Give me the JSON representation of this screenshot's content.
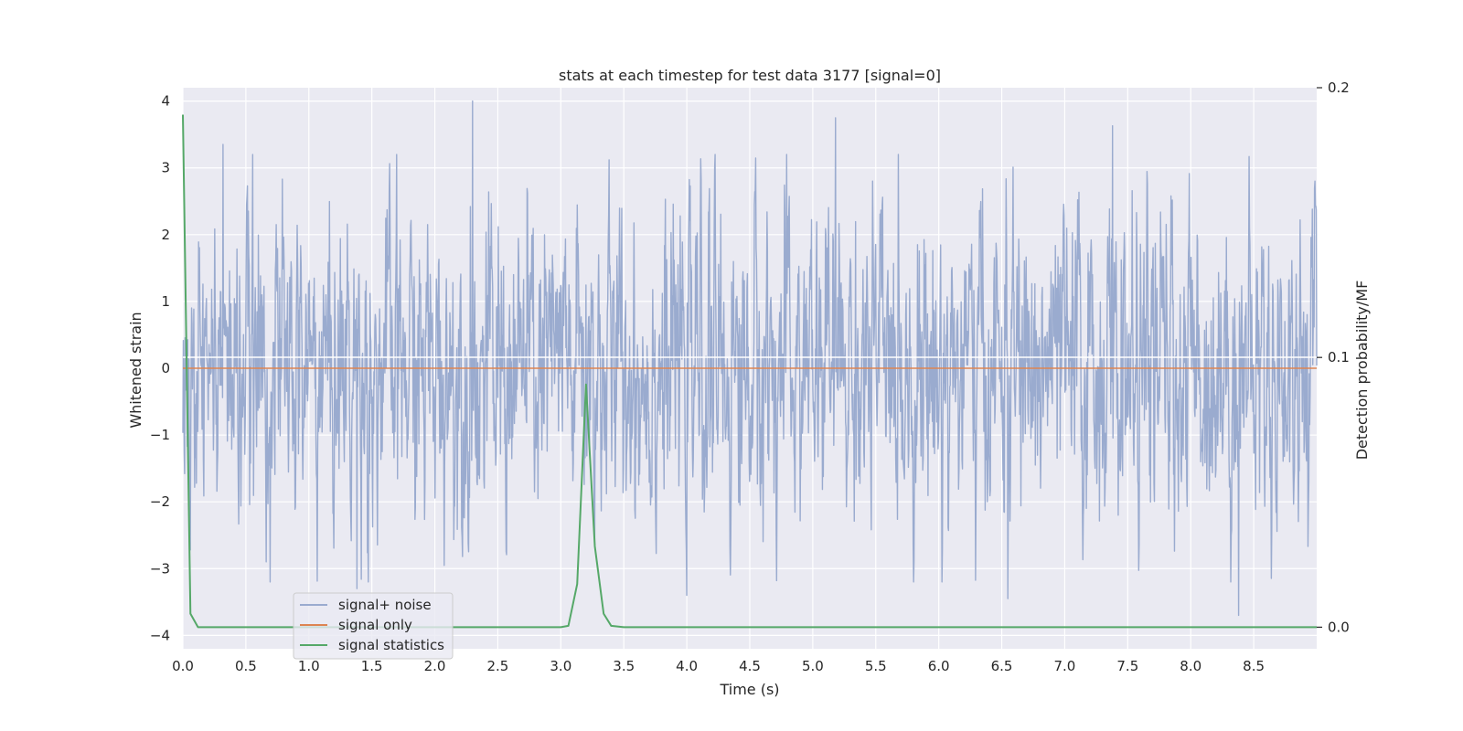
{
  "chart_data": {
    "type": "line",
    "title": "stats at each timestep for test data 3177 [signal=0]",
    "xlabel": "Time (s)",
    "ylabel": "Whitened strain",
    "y2label": "Detection probability/MF",
    "xlim": [
      0,
      9.0
    ],
    "ylim": [
      -4.2,
      4.2
    ],
    "y2lim": [
      -0.008,
      0.2
    ],
    "x_ticks": [
      "0.0",
      "0.5",
      "1.0",
      "1.5",
      "2.0",
      "2.5",
      "3.0",
      "3.5",
      "4.0",
      "4.5",
      "5.0",
      "5.5",
      "6.0",
      "6.5",
      "7.0",
      "7.5",
      "8.0",
      "8.5"
    ],
    "y_ticks": [
      "4",
      "3",
      "2",
      "1",
      "0",
      "−1",
      "−2",
      "−3",
      "−4"
    ],
    "y2_ticks": [
      "0.2",
      "0.1",
      "0.0"
    ],
    "grid": true,
    "legend_position": "lower-left",
    "series": [
      {
        "name": "signal+ noise",
        "axis": "left",
        "color": "#9aabcf",
        "description_range": [
          -3.7,
          4.0
        ],
        "peaks": [
          {
            "x": 2.3,
            "y": 4.0
          },
          {
            "x": 5.18,
            "y": 3.75
          },
          {
            "x": 7.38,
            "y": 3.63
          },
          {
            "x": 0.32,
            "y": 3.35
          },
          {
            "x": 8.38,
            "y": -3.7
          },
          {
            "x": 6.55,
            "y": -3.45
          },
          {
            "x": 4.0,
            "y": -3.4
          },
          {
            "x": 1.38,
            "y": -3.3
          }
        ]
      },
      {
        "name": "signal only",
        "axis": "left",
        "color": "#dd8452",
        "x": [
          0,
          9.0
        ],
        "y": [
          0,
          0
        ]
      },
      {
        "name": "signal statistics",
        "axis": "right",
        "color": "#55a868",
        "x": [
          0.0,
          0.06,
          0.12,
          0.25,
          0.5,
          1.0,
          1.5,
          2.0,
          2.5,
          3.0,
          3.06,
          3.13,
          3.2,
          3.27,
          3.34,
          3.4,
          3.5,
          4.0,
          5.0,
          6.0,
          7.0,
          8.0,
          9.0
        ],
        "y": [
          0.19,
          0.005,
          0.0,
          0.0,
          0.0,
          0.0,
          0.0,
          0.0,
          0.0,
          0.0,
          0.0005,
          0.016,
          0.09,
          0.03,
          0.005,
          0.0005,
          0.0,
          0.0,
          0.0,
          0.0,
          0.0,
          0.0,
          0.0
        ]
      }
    ]
  }
}
